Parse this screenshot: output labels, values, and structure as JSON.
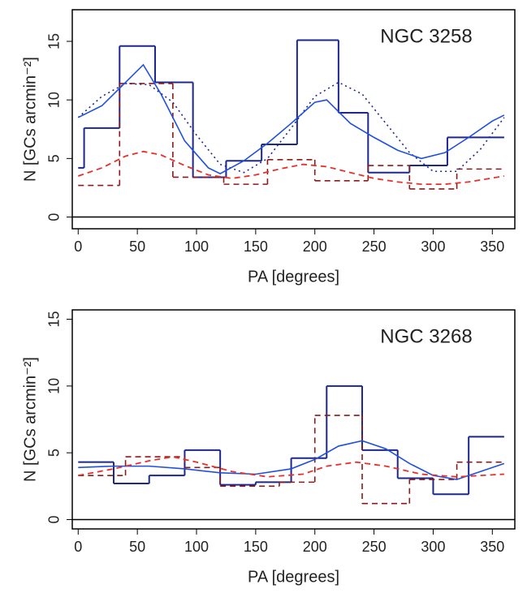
{
  "chart_data": [
    {
      "type": "line",
      "title": "NGC 3258",
      "x_label": "PA [degrees]",
      "y_label": "N [GCs arcmin⁻²]",
      "xlim": [
        -5,
        369
      ],
      "ylim": [
        -1,
        17.7
      ],
      "xticks": [
        0,
        50,
        100,
        150,
        200,
        250,
        300,
        350
      ],
      "yticks": [
        0,
        5,
        10,
        15
      ],
      "hline": 0,
      "series": [
        {
          "kind": "step",
          "dash": "solid",
          "width": 2,
          "color": "#1c2790",
          "bins": [
            0,
            5,
            35,
            65,
            97,
            125,
            155,
            185,
            220,
            245,
            280,
            312,
            360
          ],
          "values": [
            4.2,
            7.6,
            14.6,
            11.5,
            3.4,
            4.8,
            6.2,
            15.1,
            8.9,
            3.8,
            4.4,
            6.8
          ]
        },
        {
          "kind": "step",
          "dash": "dashed",
          "width": 1.6,
          "color": "#8b1a1a",
          "bins": [
            0,
            35,
            80,
            123,
            160,
            200,
            245,
            280,
            320,
            360
          ],
          "values": [
            2.7,
            11.4,
            3.4,
            2.8,
            4.9,
            3.1,
            4.4,
            2.4,
            4.1
          ]
        },
        {
          "kind": "line",
          "dash": "dotted",
          "width": 1.6,
          "color": "#1c2790",
          "x": [
            0,
            20,
            40,
            60,
            80,
            100,
            120,
            140,
            160,
            180,
            200,
            220,
            240,
            260,
            280,
            300,
            320,
            340,
            360
          ],
          "values": [
            8.5,
            10.3,
            11.4,
            11.3,
            9.8,
            7,
            4.5,
            3.8,
            5,
            7.6,
            10.3,
            11.5,
            10.5,
            8,
            5.5,
            3.9,
            3.9,
            5.8,
            8.5
          ]
        },
        {
          "kind": "line",
          "dash": "solid",
          "width": 1.6,
          "color": "#1f4fe0",
          "x": [
            0,
            20,
            40,
            55,
            70,
            90,
            110,
            120,
            140,
            160,
            180,
            200,
            210,
            230,
            250,
            270,
            290,
            310,
            330,
            350,
            360
          ],
          "values": [
            8.5,
            9.5,
            11.5,
            13,
            10.5,
            6.5,
            4.2,
            3.7,
            4.8,
            6.3,
            8,
            9.8,
            10,
            8,
            6.8,
            5.7,
            5,
            5.5,
            6.8,
            8.2,
            8.7
          ]
        },
        {
          "kind": "line",
          "dash": "dashed",
          "width": 1.8,
          "color": "#e8302a",
          "x": [
            0,
            20,
            40,
            55,
            70,
            90,
            110,
            130,
            150,
            170,
            190,
            210,
            230,
            250,
            270,
            290,
            310,
            330,
            360
          ],
          "values": [
            3.5,
            4.2,
            5.2,
            5.6,
            5.3,
            4.4,
            3.6,
            3.3,
            3.6,
            4.1,
            4.5,
            4.3,
            3.8,
            3.3,
            3,
            2.8,
            2.8,
            3,
            3.5
          ]
        }
      ]
    },
    {
      "type": "line",
      "title": "NGC 3268",
      "x_label": "PA [degrees]",
      "y_label": "N [GCs arcmin⁻²]",
      "xlim": [
        -5,
        369
      ],
      "ylim": [
        -0.7,
        15.7
      ],
      "xticks": [
        0,
        50,
        100,
        150,
        200,
        250,
        300,
        350
      ],
      "yticks": [
        0,
        5,
        10,
        15
      ],
      "hline": 0,
      "series": [
        {
          "kind": "step",
          "dash": "solid",
          "width": 2,
          "color": "#1c2790",
          "bins": [
            0,
            30,
            60,
            90,
            120,
            150,
            180,
            210,
            240,
            270,
            300,
            330,
            360
          ],
          "values": [
            4.3,
            2.7,
            3.3,
            5.2,
            2.6,
            2.8,
            4.6,
            10,
            5.2,
            3.1,
            1.9,
            6.2
          ]
        },
        {
          "kind": "step",
          "dash": "dashed",
          "width": 1.6,
          "color": "#8b1a1a",
          "bins": [
            0,
            40,
            90,
            120,
            170,
            200,
            240,
            280,
            320,
            360
          ],
          "values": [
            3.3,
            4.7,
            3.9,
            2.5,
            2.8,
            7.8,
            1.2,
            3,
            4.3
          ]
        },
        {
          "kind": "line",
          "dash": "solid",
          "width": 1.6,
          "color": "#1f4fe0",
          "x": [
            0,
            30,
            60,
            90,
            120,
            150,
            180,
            200,
            220,
            240,
            260,
            280,
            300,
            320,
            340,
            360
          ],
          "values": [
            3.9,
            4,
            4,
            3.8,
            3.5,
            3.4,
            3.8,
            4.5,
            5.5,
            5.9,
            5.3,
            4.2,
            3.3,
            3,
            3.6,
            4.2
          ]
        },
        {
          "kind": "line",
          "dash": "dashed",
          "width": 1.8,
          "color": "#e8302a",
          "x": [
            0,
            30,
            60,
            80,
            100,
            130,
            160,
            190,
            210,
            235,
            260,
            290,
            320,
            340,
            360
          ],
          "values": [
            3.3,
            3.8,
            4.4,
            4.7,
            4.3,
            3.6,
            3.2,
            3.4,
            4,
            4.3,
            4,
            3.4,
            3.2,
            3.3,
            3.4
          ]
        }
      ]
    }
  ]
}
